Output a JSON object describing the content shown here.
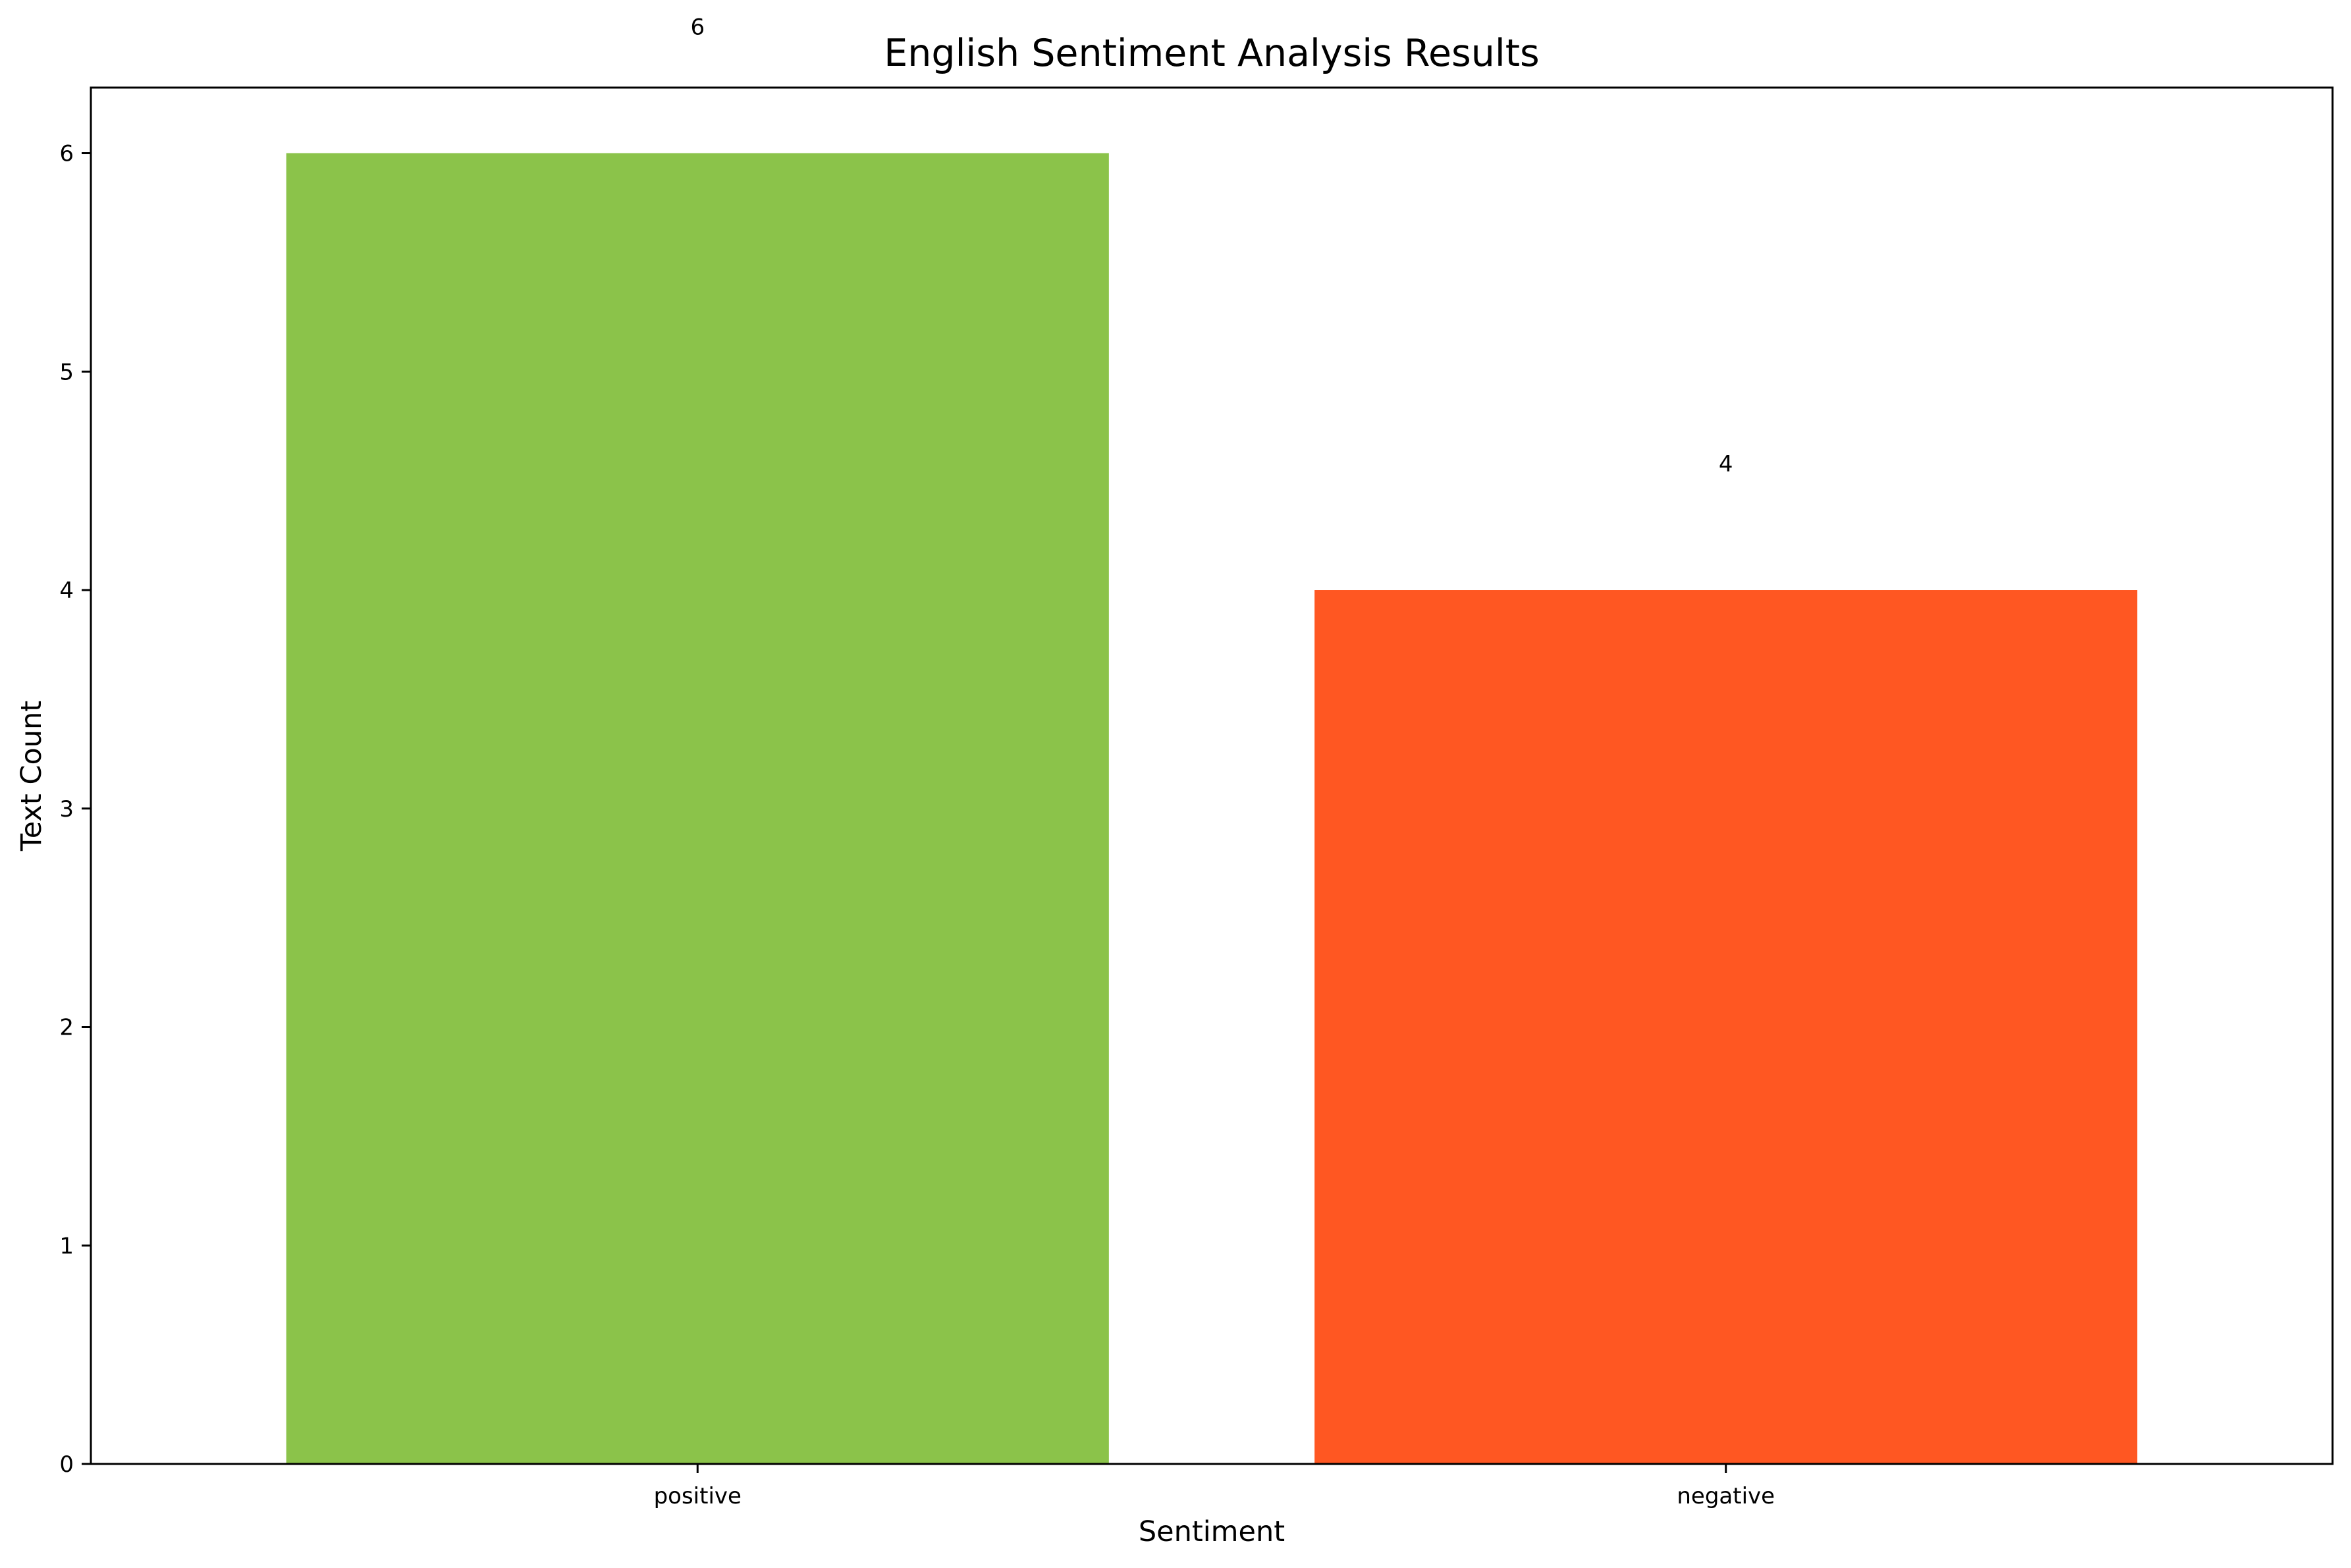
{
  "chart_data": {
    "type": "bar",
    "title": "English Sentiment Analysis Results",
    "xlabel": "Sentiment",
    "ylabel": "Text Count",
    "categories": [
      "positive",
      "negative"
    ],
    "values": [
      6,
      4
    ],
    "data_labels": [
      "6",
      "4"
    ],
    "colors": [
      "#8BC34A",
      "#FF5722"
    ],
    "ylim": [
      0,
      6.3
    ],
    "yticks": [
      0,
      1,
      2,
      3,
      4,
      5,
      6
    ],
    "ytick_labels": [
      "0",
      "1",
      "2",
      "3",
      "4",
      "5",
      "6"
    ],
    "grid": false,
    "legend": "none"
  }
}
